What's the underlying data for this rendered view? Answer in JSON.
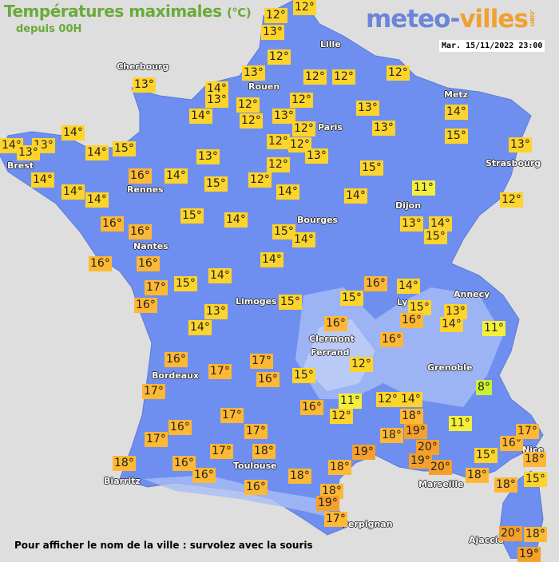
{
  "header": {
    "title": "Températures maximales",
    "unit": "(°C)",
    "subtitle": "depuis 00H",
    "date": "Mar. 15/11/2022 23:00"
  },
  "logo": {
    "part1": "meteo-",
    "part2": "villes",
    "suffix": ".com"
  },
  "footer": "Pour afficher le nom de la ville : survolez avec la souris",
  "colors": {
    "sea": "#dedede",
    "land": "#6f8ff0",
    "land_light": "#a9bdf5",
    "cold": "#ccf030",
    "cool": "#f4f03a",
    "mild": "#ffd42a",
    "warm": "#ffb833",
    "hot": "#f5a02a"
  },
  "cities": [
    "Cherbourg",
    "Lille",
    "Rouen",
    "Paris",
    "Metz",
    "Strasbourg",
    "Brest",
    "Rennes",
    "Nantes",
    "Dijon",
    "Bourges",
    "Limoges",
    "Ly",
    "Annecy",
    "Clermont",
    "Ferrand",
    "Grenoble",
    "Bordeaux",
    "Toulouse",
    "Biarritz",
    "Marseille",
    "Nice",
    "Ajaccio",
    "Perpignan"
  ],
  "temperatures": [
    12,
    12,
    13,
    12,
    13,
    12,
    12,
    12,
    14,
    13,
    12,
    12,
    13,
    12,
    12,
    12,
    12,
    13,
    13,
    13,
    14,
    15,
    13,
    14,
    13,
    14,
    14,
    13,
    13,
    15,
    14,
    13,
    16,
    14,
    15,
    12,
    12,
    15,
    14,
    14,
    14,
    14,
    14,
    11,
    12,
    16,
    16,
    15,
    14,
    15,
    14,
    13,
    14,
    15,
    16,
    16,
    14,
    17,
    16,
    15,
    14,
    13,
    14,
    15,
    15,
    16,
    14,
    15,
    16,
    13,
    14,
    11,
    16,
    16,
    12,
    16,
    17,
    17,
    16,
    15,
    17,
    8,
    11,
    12,
    12,
    14,
    18,
    19,
    16,
    11,
    17,
    16,
    17,
    17,
    18,
    17,
    18,
    20,
    19,
    20,
    19,
    18,
    18,
    15,
    16,
    17,
    18,
    18,
    18,
    16,
    16,
    16,
    18,
    15,
    18,
    19,
    17,
    20,
    18,
    19
  ]
}
